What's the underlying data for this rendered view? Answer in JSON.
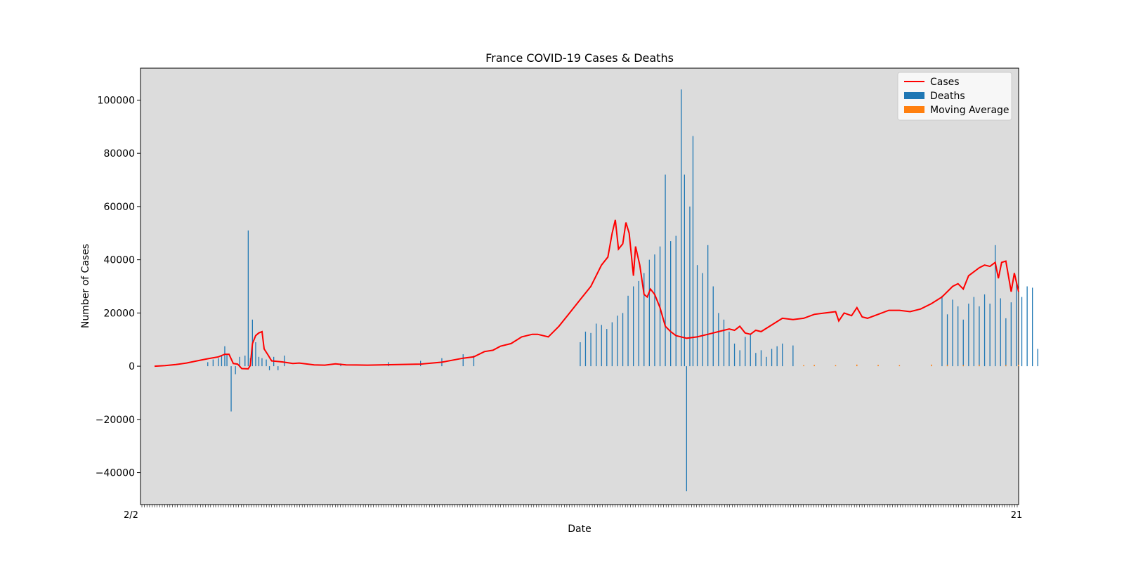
{
  "chart_data": {
    "type": "bar",
    "title": "France COVID-19 Cases & Deaths",
    "xlabel": "Date",
    "ylabel": "Number of Cases",
    "ylim": [
      -52000,
      112000
    ],
    "yticks": [
      -40000,
      -20000,
      0,
      20000,
      40000,
      60000,
      80000,
      100000
    ],
    "grid": false,
    "legend_position": "top-right",
    "first_x_label": "2/2",
    "last_x_label": "21",
    "num_days": 345,
    "series": [
      {
        "name": "Cases",
        "type": "line",
        "color": "#ff0000",
        "points": [
          [
            0,
            0
          ],
          [
            10,
            200
          ],
          [
            20,
            600
          ],
          [
            30,
            1200
          ],
          [
            40,
            2000
          ],
          [
            50,
            2800
          ],
          [
            60,
            3500
          ],
          [
            66,
            4500
          ],
          [
            70,
            4500
          ],
          [
            74,
            1000
          ],
          [
            78,
            800
          ],
          [
            82,
            -900
          ],
          [
            88,
            -1000
          ],
          [
            90,
            300
          ],
          [
            92,
            8500
          ],
          [
            95,
            11500
          ],
          [
            98,
            12500
          ],
          [
            101,
            13000
          ],
          [
            103,
            6500
          ],
          [
            107,
            4000
          ],
          [
            110,
            2000
          ],
          [
            120,
            1600
          ],
          [
            130,
            1000
          ],
          [
            136,
            1200
          ],
          [
            150,
            500
          ],
          [
            160,
            400
          ],
          [
            170,
            900
          ],
          [
            180,
            500
          ],
          [
            200,
            400
          ],
          [
            250,
            800
          ],
          [
            270,
            1500
          ],
          [
            290,
            3000
          ],
          [
            300,
            3500
          ],
          [
            310,
            5500
          ],
          [
            318,
            6000
          ],
          [
            325,
            7500
          ],
          [
            335,
            8500
          ],
          [
            345,
            11000
          ],
          [
            355,
            12000
          ],
          [
            360,
            12000
          ],
          [
            370,
            11000
          ],
          [
            380,
            15000
          ],
          [
            390,
            20000
          ],
          [
            400,
            25000
          ],
          [
            410,
            30000
          ],
          [
            420,
            38000
          ],
          [
            426,
            41000
          ],
          [
            430,
            50000
          ],
          [
            433,
            55000
          ],
          [
            436,
            44000
          ],
          [
            440,
            46000
          ],
          [
            443,
            54000
          ],
          [
            446,
            50000
          ],
          [
            450,
            34000
          ],
          [
            452,
            45000
          ],
          [
            456,
            38000
          ],
          [
            460,
            27000
          ],
          [
            463,
            26000
          ],
          [
            466,
            29000
          ],
          [
            470,
            27000
          ],
          [
            475,
            22000
          ],
          [
            480,
            15000
          ],
          [
            485,
            13000
          ],
          [
            490,
            11500
          ],
          [
            500,
            10500
          ],
          [
            510,
            11000
          ],
          [
            520,
            12000
          ],
          [
            530,
            13000
          ],
          [
            540,
            14000
          ],
          [
            545,
            13500
          ],
          [
            550,
            15000
          ],
          [
            555,
            12500
          ],
          [
            560,
            12000
          ],
          [
            565,
            13500
          ],
          [
            570,
            13000
          ],
          [
            580,
            15500
          ],
          [
            590,
            18000
          ],
          [
            600,
            17500
          ],
          [
            610,
            18000
          ],
          [
            620,
            19500
          ],
          [
            630,
            20000
          ],
          [
            640,
            20500
          ],
          [
            643,
            17000
          ],
          [
            648,
            20000
          ],
          [
            655,
            19000
          ],
          [
            660,
            22000
          ],
          [
            665,
            18500
          ],
          [
            670,
            18000
          ],
          [
            680,
            19500
          ],
          [
            690,
            21000
          ],
          [
            700,
            21000
          ],
          [
            710,
            20500
          ],
          [
            720,
            21500
          ],
          [
            730,
            23500
          ],
          [
            740,
            26000
          ],
          [
            750,
            30000
          ],
          [
            755,
            31000
          ],
          [
            760,
            29000
          ],
          [
            765,
            34000
          ],
          [
            775,
            37000
          ],
          [
            780,
            38000
          ],
          [
            785,
            37500
          ],
          [
            790,
            39000
          ],
          [
            793,
            33000
          ],
          [
            796,
            39000
          ],
          [
            800,
            39500
          ],
          [
            805,
            28000
          ],
          [
            808,
            35000
          ],
          [
            812,
            28000
          ]
        ]
      },
      {
        "name": "Deaths",
        "type": "bar",
        "color": "#1f77b4",
        "values": [
          [
            50,
            1500
          ],
          [
            55,
            2500
          ],
          [
            60,
            3000
          ],
          [
            63,
            4000
          ],
          [
            66,
            7500
          ],
          [
            68,
            4500
          ],
          [
            72,
            -17000
          ],
          [
            76,
            -3000
          ],
          [
            80,
            3500
          ],
          [
            85,
            4000
          ],
          [
            88,
            51000
          ],
          [
            90,
            3000
          ],
          [
            92,
            17500
          ],
          [
            95,
            9000
          ],
          [
            98,
            3500
          ],
          [
            101,
            3000
          ],
          [
            105,
            2500
          ],
          [
            108,
            -1500
          ],
          [
            112,
            3500
          ],
          [
            116,
            -1500
          ],
          [
            122,
            4000
          ],
          [
            175,
            1000
          ],
          [
            220,
            1500
          ],
          [
            250,
            2000
          ],
          [
            270,
            3000
          ],
          [
            290,
            4500
          ],
          [
            300,
            4000
          ],
          [
            400,
            9000
          ],
          [
            405,
            13000
          ],
          [
            410,
            12500
          ],
          [
            415,
            16000
          ],
          [
            420,
            15500
          ],
          [
            425,
            14000
          ],
          [
            430,
            16500
          ],
          [
            435,
            19000
          ],
          [
            440,
            20000
          ],
          [
            445,
            26500
          ],
          [
            450,
            30000
          ],
          [
            455,
            32000
          ],
          [
            460,
            35000
          ],
          [
            465,
            40000
          ],
          [
            470,
            42000
          ],
          [
            475,
            45000
          ],
          [
            480,
            72000
          ],
          [
            485,
            47000
          ],
          [
            490,
            49000
          ],
          [
            495,
            104000
          ],
          [
            498,
            72000
          ],
          [
            500,
            -47000
          ],
          [
            503,
            60000
          ],
          [
            506,
            86500
          ],
          [
            510,
            38000
          ],
          [
            515,
            35000
          ],
          [
            520,
            45500
          ],
          [
            525,
            30000
          ],
          [
            530,
            20000
          ],
          [
            535,
            17500
          ],
          [
            540,
            13000
          ],
          [
            545,
            8500
          ],
          [
            550,
            6000
          ],
          [
            555,
            11000
          ],
          [
            560,
            12000
          ],
          [
            565,
            5000
          ],
          [
            570,
            6000
          ],
          [
            575,
            3500
          ],
          [
            580,
            6500
          ],
          [
            585,
            7500
          ],
          [
            590,
            8500
          ],
          [
            600,
            7800
          ],
          [
            740,
            26500
          ],
          [
            745,
            19500
          ],
          [
            750,
            25000
          ],
          [
            755,
            22500
          ],
          [
            760,
            17500
          ],
          [
            765,
            23500
          ],
          [
            770,
            26000
          ],
          [
            775,
            22500
          ],
          [
            780,
            27000
          ],
          [
            785,
            23500
          ],
          [
            790,
            45500
          ],
          [
            795,
            25500
          ],
          [
            800,
            18000
          ],
          [
            805,
            24000
          ],
          [
            810,
            31500
          ],
          [
            815,
            26000
          ],
          [
            820,
            30000
          ],
          [
            825,
            29500
          ],
          [
            830,
            6500
          ]
        ]
      },
      {
        "name": "Moving Average",
        "type": "bar",
        "color": "#ff7f0e",
        "values": [
          [
            610,
            400
          ],
          [
            620,
            500
          ],
          [
            640,
            400
          ],
          [
            660,
            600
          ],
          [
            680,
            500
          ],
          [
            700,
            400
          ],
          [
            730,
            600
          ],
          [
            745,
            500
          ],
          [
            760,
            400
          ],
          [
            775,
            500
          ],
          [
            800,
            400
          ],
          [
            812,
            500
          ]
        ]
      }
    ]
  }
}
